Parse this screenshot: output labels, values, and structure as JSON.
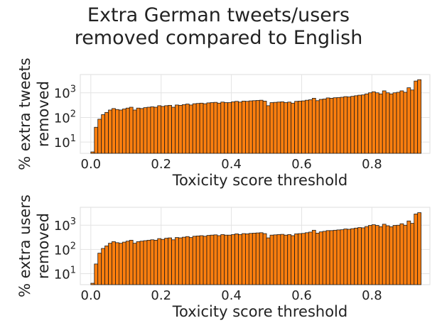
{
  "title_lines": [
    "Extra German tweets/users",
    "removed compared to English"
  ],
  "colors": {
    "bar_fill": "#ff7f0e",
    "bar_edge": "#1a1a1a",
    "grid": "#e3e3e3",
    "frame": "#dddddd",
    "text": "#222222"
  },
  "chart_data": [
    {
      "type": "bar",
      "title": "",
      "xlabel": "Toxicity score threshold",
      "ylabel_lines": [
        "% extra tweets",
        "removed"
      ],
      "y_scale": "log",
      "xlim": [
        -0.03,
        0.965
      ],
      "ylim": [
        3.5,
        5500
      ],
      "x_ticks": [
        0.0,
        0.2,
        0.4,
        0.6,
        0.8
      ],
      "x_tick_labels": [
        "0.0",
        "0.2",
        "0.4",
        "0.6",
        "0.8"
      ],
      "y_ticks": [
        10,
        100,
        1000
      ],
      "y_tick_bases": [
        "10",
        "10",
        "10"
      ],
      "y_tick_exps": [
        "1",
        "2",
        "3"
      ],
      "grid": true,
      "bin_width": 0.01,
      "x": [
        0.0,
        0.01,
        0.02,
        0.03,
        0.04,
        0.05,
        0.06,
        0.07,
        0.08,
        0.09,
        0.1,
        0.11,
        0.12,
        0.13,
        0.14,
        0.15,
        0.16,
        0.17,
        0.18,
        0.19,
        0.2,
        0.21,
        0.22,
        0.23,
        0.24,
        0.25,
        0.26,
        0.27,
        0.28,
        0.29,
        0.3,
        0.31,
        0.32,
        0.33,
        0.34,
        0.35,
        0.36,
        0.37,
        0.38,
        0.39,
        0.4,
        0.41,
        0.42,
        0.43,
        0.44,
        0.45,
        0.46,
        0.47,
        0.48,
        0.49,
        0.5,
        0.51,
        0.52,
        0.53,
        0.54,
        0.55,
        0.56,
        0.57,
        0.58,
        0.59,
        0.6,
        0.61,
        0.62,
        0.63,
        0.64,
        0.65,
        0.66,
        0.67,
        0.68,
        0.69,
        0.7,
        0.71,
        0.72,
        0.73,
        0.74,
        0.75,
        0.76,
        0.77,
        0.78,
        0.79,
        0.8,
        0.81,
        0.82,
        0.83,
        0.84,
        0.85,
        0.86,
        0.87,
        0.88,
        0.89,
        0.9,
        0.91,
        0.92,
        0.93
      ],
      "values": [
        4,
        40,
        85,
        130,
        160,
        200,
        230,
        210,
        200,
        220,
        240,
        260,
        200,
        240,
        230,
        250,
        260,
        270,
        260,
        300,
        280,
        300,
        310,
        260,
        320,
        310,
        330,
        350,
        320,
        360,
        370,
        380,
        360,
        390,
        400,
        410,
        380,
        420,
        400,
        400,
        430,
        450,
        420,
        460,
        450,
        470,
        480,
        490,
        500,
        460,
        300,
        400,
        410,
        420,
        430,
        400,
        420,
        380,
        450,
        460,
        470,
        500,
        520,
        600,
        480,
        540,
        560,
        620,
        600,
        630,
        640,
        660,
        700,
        680,
        720,
        760,
        800,
        820,
        900,
        1000,
        1100,
        1000,
        900,
        1200,
        1000,
        900,
        1000,
        1050,
        1200,
        1050,
        1600,
        1300,
        3000,
        3400
      ]
    },
    {
      "type": "bar",
      "title": "",
      "xlabel": "Toxicity score threshold",
      "ylabel_lines": [
        "% extra users",
        "removed"
      ],
      "y_scale": "log",
      "xlim": [
        -0.03,
        0.965
      ],
      "ylim": [
        3.5,
        5500
      ],
      "x_ticks": [
        0.0,
        0.2,
        0.4,
        0.6,
        0.8
      ],
      "x_tick_labels": [
        "0.0",
        "0.2",
        "0.4",
        "0.6",
        "0.8"
      ],
      "y_ticks": [
        10,
        100,
        1000
      ],
      "y_tick_bases": [
        "10",
        "10",
        "10"
      ],
      "y_tick_exps": [
        "1",
        "2",
        "3"
      ],
      "grid": true,
      "bin_width": 0.01,
      "x": [
        0.0,
        0.01,
        0.02,
        0.03,
        0.04,
        0.05,
        0.06,
        0.07,
        0.08,
        0.09,
        0.1,
        0.11,
        0.12,
        0.13,
        0.14,
        0.15,
        0.16,
        0.17,
        0.18,
        0.19,
        0.2,
        0.21,
        0.22,
        0.23,
        0.24,
        0.25,
        0.26,
        0.27,
        0.28,
        0.29,
        0.3,
        0.31,
        0.32,
        0.33,
        0.34,
        0.35,
        0.36,
        0.37,
        0.38,
        0.39,
        0.4,
        0.41,
        0.42,
        0.43,
        0.44,
        0.45,
        0.46,
        0.47,
        0.48,
        0.49,
        0.5,
        0.51,
        0.52,
        0.53,
        0.54,
        0.55,
        0.56,
        0.57,
        0.58,
        0.59,
        0.6,
        0.61,
        0.62,
        0.63,
        0.64,
        0.65,
        0.66,
        0.67,
        0.68,
        0.69,
        0.7,
        0.71,
        0.72,
        0.73,
        0.74,
        0.75,
        0.76,
        0.77,
        0.78,
        0.79,
        0.8,
        0.81,
        0.82,
        0.83,
        0.84,
        0.85,
        0.86,
        0.87,
        0.88,
        0.89,
        0.9,
        0.91,
        0.92,
        0.93
      ],
      "values": [
        4,
        25,
        70,
        110,
        140,
        180,
        210,
        190,
        180,
        200,
        220,
        240,
        180,
        210,
        220,
        230,
        240,
        250,
        240,
        280,
        260,
        290,
        300,
        250,
        310,
        300,
        320,
        340,
        310,
        350,
        360,
        370,
        350,
        380,
        390,
        400,
        370,
        410,
        390,
        390,
        410,
        440,
        410,
        450,
        440,
        460,
        470,
        480,
        490,
        450,
        300,
        390,
        400,
        410,
        420,
        390,
        410,
        370,
        440,
        450,
        460,
        490,
        520,
        620,
        470,
        530,
        560,
        600,
        600,
        620,
        640,
        650,
        700,
        680,
        720,
        760,
        800,
        780,
        880,
        980,
        1050,
        980,
        870,
        1100,
        950,
        860,
        980,
        1000,
        1150,
        1000,
        1500,
        1200,
        2900,
        3300
      ]
    }
  ]
}
